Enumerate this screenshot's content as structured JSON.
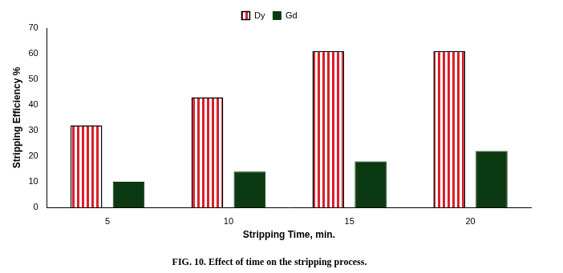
{
  "chart_data": {
    "type": "bar",
    "title": "FIG. 10. Effect of time on the stripping process.",
    "x_label": "Stripping Time, min.",
    "y_label": "Stripping Efficiency %",
    "categories": [
      "5",
      "10",
      "15",
      "20"
    ],
    "series": [
      {
        "name": "Dy",
        "color": "#d9202a",
        "values": [
          32,
          43,
          61,
          61
        ]
      },
      {
        "name": "Gd",
        "color": "#0b3a12",
        "values": [
          10,
          14,
          18,
          22
        ]
      }
    ],
    "ylim": [
      0,
      70
    ],
    "yticks": [
      0,
      10,
      20,
      30,
      40,
      50,
      60,
      70
    ],
    "grid": false,
    "legend": "top"
  }
}
